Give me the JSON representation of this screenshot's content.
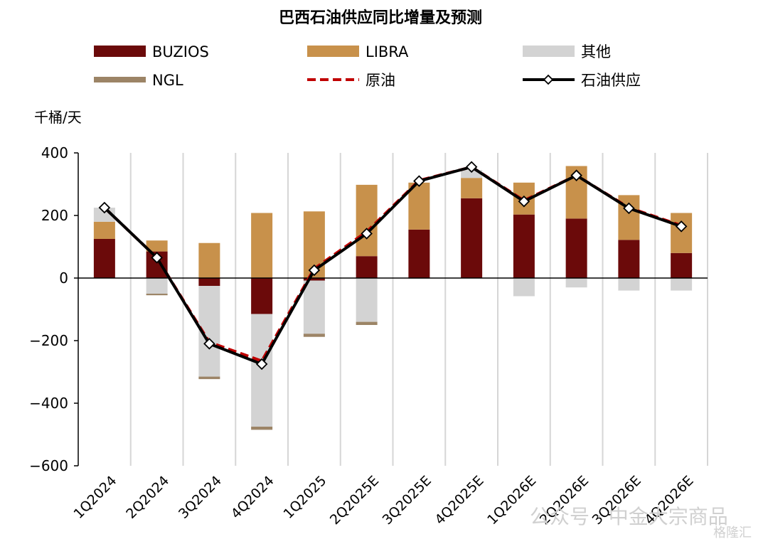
{
  "chart_data": {
    "type": "bar",
    "title": "巴西石油供应同比增量及预测",
    "ylabel": "千桶/天",
    "ylim": [
      -600,
      400
    ],
    "yticks": [
      400,
      200,
      0,
      -200,
      -400,
      -600
    ],
    "ytick_labels": [
      "400",
      "200",
      "0",
      "−200",
      "−400",
      "−600"
    ],
    "grid": false,
    "legend_position": "top",
    "categories": [
      "1Q2024",
      "2Q2024",
      "3Q2024",
      "4Q2024",
      "1Q2025",
      "2Q2025E",
      "3Q2025E",
      "4Q2025E",
      "1Q2026E",
      "2Q2026E",
      "3Q2026E",
      "4Q2026E"
    ],
    "stack_series": [
      {
        "name": "BUZIOS",
        "color": "#6b0a0a",
        "values": [
          125,
          85,
          -25,
          -115,
          -8,
          70,
          155,
          255,
          203,
          190,
          122,
          80
        ]
      },
      {
        "name": "LIBRA",
        "color": "#c8914b",
        "values": [
          55,
          35,
          112,
          208,
          213,
          228,
          150,
          65,
          102,
          168,
          143,
          128
        ]
      },
      {
        "name": "其他",
        "color": "#d3d3d3",
        "values": [
          45,
          -50,
          -290,
          -360,
          -170,
          -140,
          -3,
          25,
          -58,
          -30,
          -40,
          -40
        ]
      },
      {
        "name": "NGL",
        "color": "#9c8466",
        "values": [
          0,
          -5,
          -8,
          -10,
          -10,
          -10,
          0,
          0,
          0,
          0,
          0,
          0
        ]
      }
    ],
    "line_series": [
      {
        "name": "原油",
        "color": "#c00000",
        "style": "dashed",
        "values": [
          225,
          65,
          -205,
          -265,
          30,
          148,
          312,
          355,
          248,
          328,
          225,
          168
        ]
      },
      {
        "name": "石油供应",
        "color": "#000000",
        "style": "solid-marker",
        "values": [
          225,
          65,
          -210,
          -275,
          25,
          142,
          310,
          355,
          245,
          328,
          223,
          165
        ]
      }
    ]
  },
  "watermark": {
    "text1": "公众号 · 中金大宗商品",
    "text2": "格隆汇"
  }
}
